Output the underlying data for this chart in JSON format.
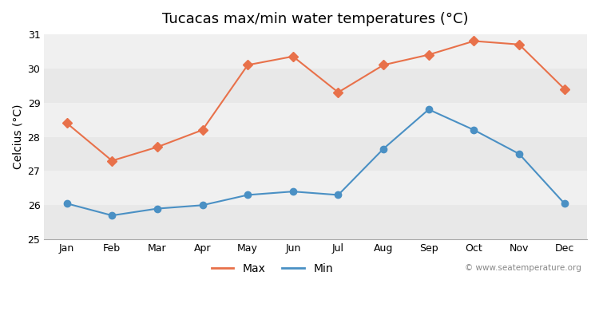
{
  "title": "Tucacas max/min water temperatures (°C)",
  "ylabel": "Celcius (°C)",
  "months": [
    "Jan",
    "Feb",
    "Mar",
    "Apr",
    "May",
    "Jun",
    "Jul",
    "Aug",
    "Sep",
    "Oct",
    "Nov",
    "Dec"
  ],
  "max_temps": [
    28.4,
    27.3,
    27.7,
    28.2,
    30.1,
    30.35,
    29.3,
    30.1,
    30.4,
    30.8,
    30.7,
    29.4
  ],
  "min_temps": [
    26.05,
    25.7,
    25.9,
    26.0,
    26.3,
    26.4,
    26.3,
    27.65,
    28.8,
    28.2,
    27.5,
    26.05
  ],
  "max_color": "#e8714a",
  "min_color": "#4a90c4",
  "ylim": [
    25,
    31
  ],
  "yticks": [
    25,
    26,
    27,
    28,
    29,
    30,
    31
  ],
  "outer_bg_color": "#ffffff",
  "band_colors": [
    "#e8e8e8",
    "#f0f0f0"
  ],
  "watermark": "© www.seatemperature.org",
  "legend_max": "Max",
  "legend_min": "Min",
  "title_fontsize": 13,
  "axis_label_fontsize": 10,
  "tick_fontsize": 9,
  "legend_fontsize": 10
}
